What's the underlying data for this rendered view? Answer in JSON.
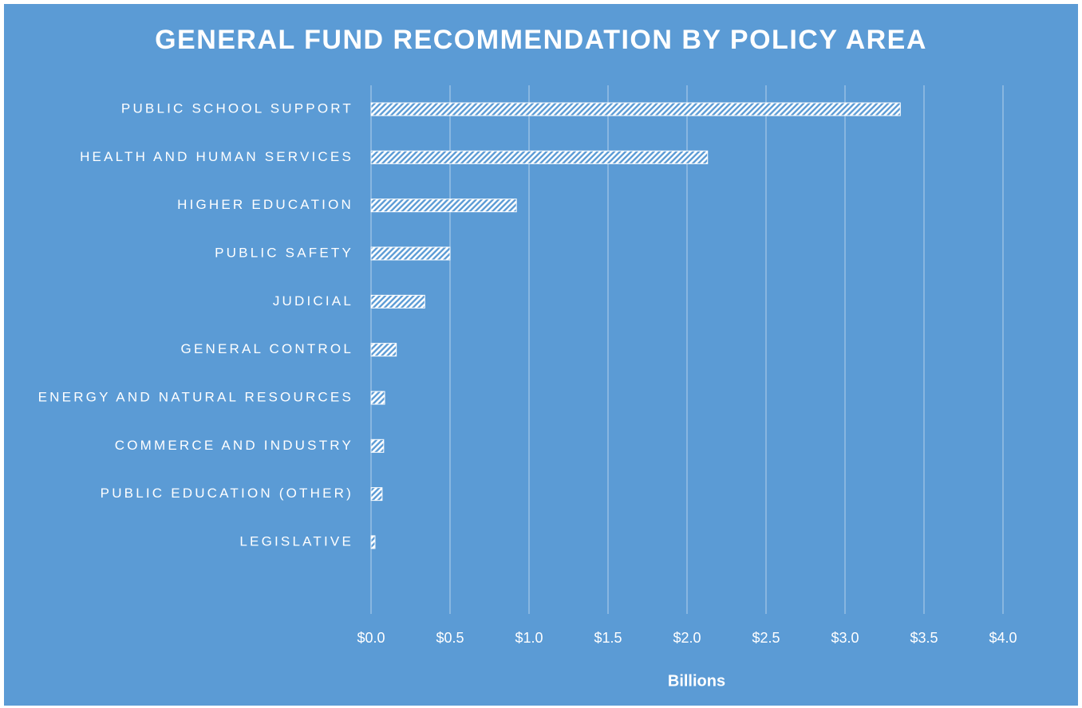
{
  "chart_data": {
    "type": "hbar",
    "title": "GENERAL FUND RECOMMENDATION BY POLICY AREA",
    "x_label": "Billions",
    "categories": [
      "PUBLIC SCHOOL SUPPORT",
      "HEALTH AND HUMAN SERVICES",
      "HIGHER EDUCATION",
      "PUBLIC SAFETY",
      "JUDICIAL",
      "GENERAL CONTROL",
      "ENERGY AND NATURAL RESOURCES",
      "COMMERCE AND INDUSTRY",
      "PUBLIC EDUCATION (OTHER)",
      "LEGISLATIVE"
    ],
    "values": [
      3.35,
      2.13,
      0.92,
      0.5,
      0.34,
      0.16,
      0.086,
      0.08,
      0.07,
      0.025
    ],
    "color": "#ffffff",
    "background": "#5b9bd5",
    "xlim": [
      0,
      4.0
    ],
    "xticks": [
      {
        "value": 0,
        "label": "$0.0"
      },
      {
        "value": 0.5,
        "label": "$0.5"
      },
      {
        "value": 1.0,
        "label": "$1.0"
      },
      {
        "value": 1.5,
        "label": "$1.5"
      },
      {
        "value": 2.0,
        "label": "$2.0"
      },
      {
        "value": 2.5,
        "label": "$2.5"
      },
      {
        "value": 3.0,
        "label": "$3.0"
      },
      {
        "value": 3.5,
        "label": "$3.5"
      },
      {
        "value": 4.0,
        "label": "$4.0"
      }
    ],
    "grid": true
  }
}
